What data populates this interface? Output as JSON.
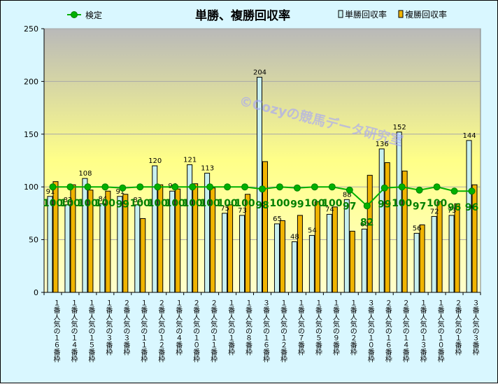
{
  "chart_data": {
    "type": "bar",
    "title": "単勝、複勝回収率",
    "watermark": "©Cozyの競馬データ研究室",
    "ylim": [
      0,
      250
    ],
    "yticks": [
      0,
      50,
      100,
      150,
      200,
      250
    ],
    "categories": [
      "１番人気の１６番枠",
      "１番人気の１４番枠",
      "１番人気の１５番枠",
      "１番人気の３番枠",
      "２番人気の３番枠",
      "１番人気の１１番枠",
      "２番人気の１２番枠",
      "１番人気の４番枠",
      "２番人気の１０番枠",
      "２番人気の１１番枠",
      "１番人気の１番枠",
      "１番人気の８番枠",
      "３番人気の１６番枠",
      "１番人気の１２番枠",
      "１番人気の７番枠",
      "１番人気の５番枠",
      "１番人気の９番枠",
      "１番人気の２番枠",
      "３番人気の１０番枠",
      "２番人気の１６番枠",
      "２番人気の１４番枠",
      "１番人気の１３番枠",
      "１番人気の１０番枠",
      "２番人気の１番枠",
      "３番人気の３番枠"
    ],
    "series": [
      {
        "name": "単勝回収率",
        "color": "#c8f0f0",
        "values": [
          91,
          83,
          108,
          84,
          91,
          83,
          120,
          96,
          121,
          113,
          75,
          73,
          204,
          65,
          48,
          54,
          74,
          88,
          60,
          136,
          152,
          56,
          72,
          73,
          144
        ]
      },
      {
        "name": "複勝回収率",
        "color": "#f0b400",
        "values": [
          105,
          102,
          97,
          96,
          93,
          70,
          102,
          98,
          103,
          99,
          83,
          93,
          124,
          68,
          73,
          86,
          81,
          58,
          111,
          123,
          115,
          64,
          86,
          84,
          102
        ]
      },
      {
        "name": "検定",
        "type": "line",
        "color": "#00b000",
        "values": [
          100,
          100,
          100,
          100,
          99,
          100,
          100,
          100,
          100,
          100,
          100,
          100,
          98,
          100,
          99,
          100,
          100,
          97,
          82,
          99,
          100,
          97,
          100,
          96,
          96
        ]
      }
    ]
  }
}
